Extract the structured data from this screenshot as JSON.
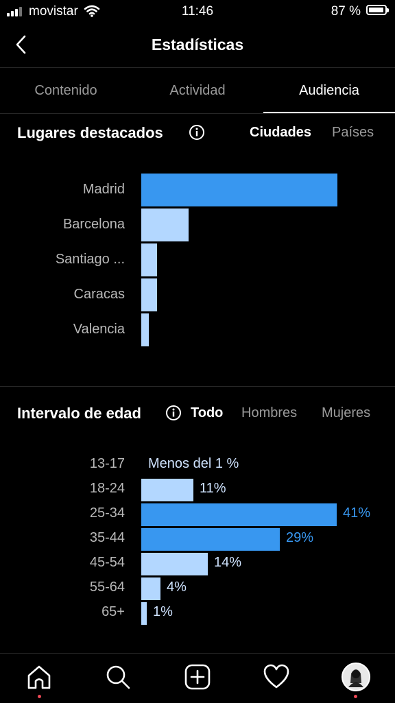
{
  "status_bar": {
    "carrier": "movistar",
    "time": "11:46",
    "battery": "87 %"
  },
  "header": {
    "title": "Estadísticas"
  },
  "tabs": [
    {
      "label": "Contenido",
      "active": false
    },
    {
      "label": "Actividad",
      "active": false
    },
    {
      "label": "Audiencia",
      "active": true
    }
  ],
  "places": {
    "title": "Lugares destacados",
    "toggles": [
      "Ciudades",
      "Países"
    ],
    "active_toggle": "Ciudades",
    "cities": [
      {
        "name": "Madrid",
        "share": 1.0
      },
      {
        "name": "Barcelona",
        "share": 0.24
      },
      {
        "name": "Santiago ...",
        "share": 0.08
      },
      {
        "name": "Caracas",
        "share": 0.08
      },
      {
        "name": "Valencia",
        "share": 0.04
      }
    ]
  },
  "age": {
    "title": "Intervalo de edad",
    "toggles": [
      "Todo",
      "Hombres",
      "Mujeres"
    ],
    "active_toggle": "Todo",
    "note_13_17": "Menos del 1 %",
    "ranges": [
      {
        "label": "13-17",
        "value": 0,
        "text": ""
      },
      {
        "label": "18-24",
        "value": 11,
        "text": "11%"
      },
      {
        "label": "25-34",
        "value": 41,
        "text": "41%"
      },
      {
        "label": "35-44",
        "value": 29,
        "text": "29%"
      },
      {
        "label": "45-54",
        "value": 14,
        "text": "14%"
      },
      {
        "label": "55-64",
        "value": 4,
        "text": "4%"
      },
      {
        "label": "65+",
        "value": 1,
        "text": "1%"
      }
    ]
  },
  "colors": {
    "bar_primary": "#3897f0",
    "bar_light": "#b3d7ff",
    "bar_mid": "#8cc1fb",
    "highlight_text": "#3897f0"
  },
  "bottom_nav": [
    "home-icon",
    "search-icon",
    "add-icon",
    "heart-icon",
    "profile-avatar"
  ]
}
